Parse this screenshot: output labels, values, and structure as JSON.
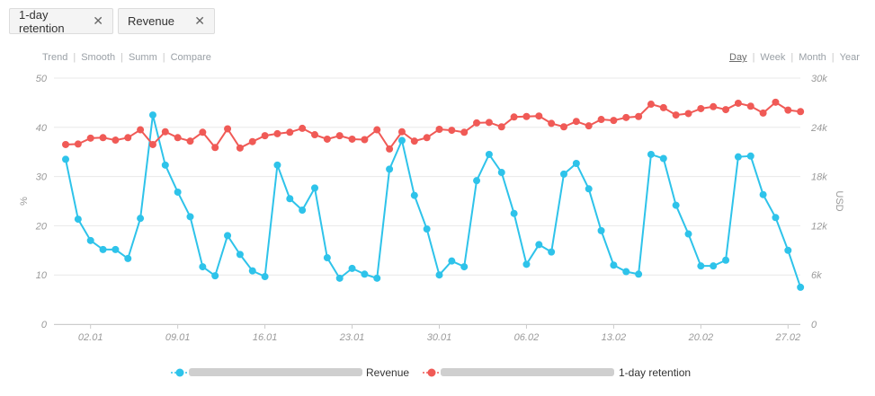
{
  "chips": [
    {
      "label": "1-day retention",
      "close": "✕"
    },
    {
      "label": "Revenue",
      "close": "✕"
    }
  ],
  "left_toolbar": {
    "trend": "Trend",
    "smooth": "Smooth",
    "summ": "Summ",
    "compare": "Compare"
  },
  "right_toolbar": {
    "day": "Day",
    "week": "Week",
    "month": "Month",
    "year": "Year",
    "active": "Day"
  },
  "colors": {
    "revenue": "#2ec3ea",
    "retention": "#f05a56",
    "grid": "#e8e8e8",
    "axis_text": "#9a9a9a"
  },
  "legend": {
    "revenue": "Revenue",
    "retention": "1-day retention"
  },
  "chart_data": {
    "type": "line",
    "ylabel_left": "%",
    "ylabel_right": "USD",
    "ylim_left": [
      0,
      50
    ],
    "ylim_right": [
      0,
      30000
    ],
    "y_ticks_left": [
      "0",
      "10",
      "20",
      "30",
      "40",
      "50"
    ],
    "y_ticks_right": [
      "0",
      "6k",
      "12k",
      "18k",
      "24k",
      "30k"
    ],
    "x_ticks": [
      "02.01",
      "09.01",
      "16.01",
      "23.01",
      "30.01",
      "06.02",
      "13.02",
      "20.02",
      "27.02"
    ],
    "x": [
      "31.12",
      "01.01",
      "02.01",
      "03.01",
      "04.01",
      "05.01",
      "06.01",
      "07.01",
      "08.01",
      "09.01",
      "10.01",
      "11.01",
      "12.01",
      "13.01",
      "14.01",
      "15.01",
      "16.01",
      "17.01",
      "18.01",
      "19.01",
      "20.01",
      "21.01",
      "22.01",
      "23.01",
      "24.01",
      "25.01",
      "26.01",
      "27.01",
      "28.01",
      "29.01",
      "30.01",
      "31.01",
      "01.02",
      "02.02",
      "03.02",
      "04.02",
      "05.02",
      "06.02",
      "07.02",
      "08.02",
      "09.02",
      "10.02",
      "11.02",
      "12.02",
      "13.02",
      "14.02",
      "15.02",
      "16.02",
      "17.02",
      "18.02",
      "19.02",
      "20.02",
      "21.02",
      "22.02",
      "23.02",
      "24.02",
      "25.02",
      "26.02",
      "27.02",
      "28.02"
    ],
    "series": [
      {
        "name": "Revenue",
        "axis": "right",
        "values": [
          20100,
          12800,
          10200,
          9100,
          9100,
          8000,
          12900,
          25500,
          19400,
          16100,
          13100,
          7000,
          5900,
          10800,
          8500,
          6500,
          5800,
          19400,
          15300,
          13900,
          16600,
          8100,
          5600,
          6800,
          6100,
          5600,
          18900,
          22400,
          15700,
          11600,
          6000,
          7700,
          7000,
          17500,
          20700,
          18500,
          13500,
          7300,
          9700,
          8800,
          18300,
          19600,
          16500,
          11400,
          7200,
          6400,
          6100,
          20700,
          20200,
          14500,
          11000,
          7100,
          7100,
          7800,
          20400,
          20500,
          15800,
          13000,
          9000,
          4500
        ],
        "_note_unused": ""
      },
      {
        "name": "1-day retention",
        "axis": "left",
        "values": [
          36.5,
          36.6,
          37.8,
          37.9,
          37.4,
          37.9,
          39.5,
          36.5,
          39.1,
          37.9,
          37.2,
          39.0,
          35.9,
          39.7,
          35.8,
          37.1,
          38.3,
          38.7,
          39.0,
          39.8,
          38.5,
          37.6,
          38.3,
          37.6,
          37.5,
          39.5,
          35.6,
          39.1,
          37.2,
          37.9,
          39.6,
          39.4,
          39.0,
          40.9,
          41.0,
          40.1,
          42.1,
          42.2,
          42.3,
          40.8,
          40.1,
          41.2,
          40.3,
          41.6,
          41.4,
          42.0,
          42.2,
          44.7,
          44.0,
          42.5,
          42.8,
          43.8,
          44.2,
          43.6,
          44.9,
          44.3,
          42.9,
          45.1,
          43.5,
          43.2
        ]
      }
    ]
  }
}
